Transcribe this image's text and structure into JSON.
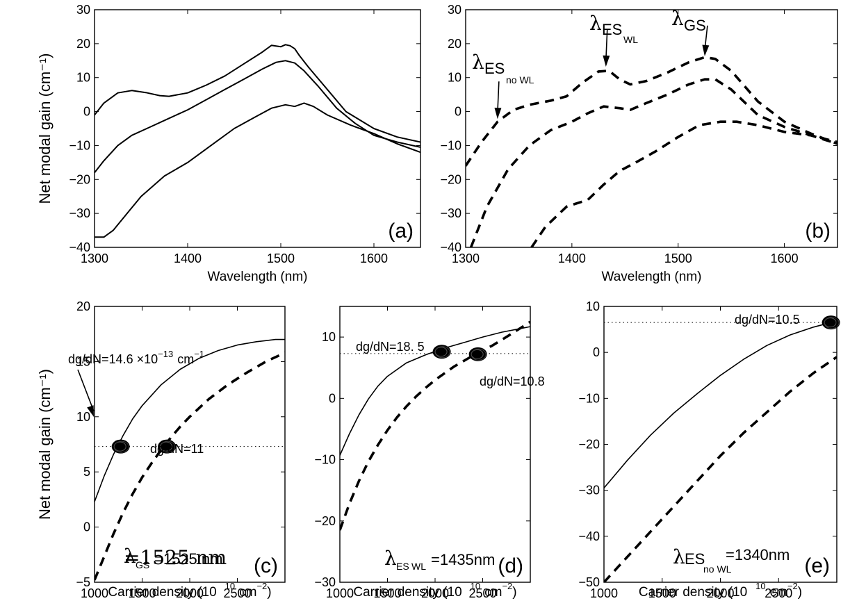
{
  "chart_data": [
    {
      "panel": "(a)",
      "type": "line",
      "xlabel": "Wavelength (nm)",
      "ylabel": "Net modal gain (cm⁻¹)",
      "xlim": [
        1300,
        1650
      ],
      "ylim": [
        -40,
        30
      ],
      "xticks": [
        1300,
        1400,
        1500,
        1600
      ],
      "yticks": [
        -40,
        -30,
        -20,
        -10,
        0,
        10,
        20,
        30
      ],
      "line_style": "solid",
      "series": [
        {
          "x": [
            1300,
            1310,
            1325,
            1340,
            1355,
            1370,
            1380,
            1400,
            1420,
            1440,
            1460,
            1480,
            1490,
            1500,
            1505,
            1510,
            1515,
            1520,
            1530,
            1550,
            1570,
            1600,
            1625,
            1650
          ],
          "y": [
            -1,
            2.5,
            5.5,
            6.2,
            5.6,
            4.7,
            4.5,
            5.5,
            7.8,
            10.5,
            14,
            17.5,
            19.5,
            19.1,
            19.7,
            19.4,
            18.5,
            16.5,
            13,
            6.5,
            0,
            -5,
            -7.5,
            -9
          ]
        },
        {
          "x": [
            1300,
            1310,
            1325,
            1340,
            1360,
            1380,
            1400,
            1420,
            1440,
            1460,
            1480,
            1495,
            1505,
            1515,
            1525,
            1540,
            1560,
            1580,
            1600,
            1625,
            1650
          ],
          "y": [
            -18,
            -14.5,
            -10,
            -7,
            -4.5,
            -2,
            0.5,
            3.5,
            6.5,
            9.5,
            12.5,
            14.5,
            15,
            14.3,
            12,
            7.5,
            1,
            -3.5,
            -7,
            -9,
            -10.5
          ]
        },
        {
          "x": [
            1300,
            1310,
            1320,
            1335,
            1350,
            1375,
            1400,
            1425,
            1450,
            1470,
            1490,
            1505,
            1515,
            1525,
            1535,
            1550,
            1575,
            1600,
            1625,
            1650
          ],
          "y": [
            -37,
            -37,
            -35,
            -30,
            -25,
            -19,
            -15,
            -10,
            -5,
            -2,
            1,
            2,
            1.5,
            2.5,
            1.5,
            -1,
            -4,
            -6.5,
            -9.5,
            -12
          ]
        }
      ],
      "panel_label": "(a)"
    },
    {
      "panel": "(b)",
      "type": "line",
      "xlabel": "Wavelength (nm)",
      "ylabel": "",
      "xlim": [
        1300,
        1650
      ],
      "ylim": [
        -40,
        30
      ],
      "xticks": [
        1300,
        1400,
        1500,
        1600
      ],
      "yticks": [
        -40,
        -30,
        -20,
        -10,
        0,
        10,
        20,
        30
      ],
      "line_style": "dashed",
      "series": [
        {
          "x": [
            1300,
            1315,
            1330,
            1345,
            1360,
            1380,
            1395,
            1410,
            1425,
            1435,
            1445,
            1455,
            1470,
            1490,
            1510,
            1525,
            1535,
            1550,
            1575,
            1600,
            1625,
            1650
          ],
          "y": [
            -16,
            -9,
            -3,
            0.5,
            2,
            3.2,
            4.5,
            8.5,
            11.8,
            12,
            9.5,
            8,
            9,
            11.5,
            14.5,
            16,
            15.5,
            12,
            3,
            -3,
            -6.5,
            -9.5
          ]
        },
        {
          "x": [
            1305,
            1320,
            1340,
            1360,
            1380,
            1400,
            1415,
            1430,
            1445,
            1455,
            1470,
            1490,
            1510,
            1525,
            1535,
            1550,
            1575,
            1600,
            1625,
            1650
          ],
          "y": [
            -40,
            -28,
            -17,
            -10,
            -5.5,
            -3,
            -0.5,
            1.5,
            1,
            0.5,
            2.5,
            5,
            8,
            9.5,
            9.5,
            6.5,
            -1,
            -4.5,
            -7,
            -9
          ]
        },
        {
          "x": [
            1362,
            1375,
            1395,
            1415,
            1430,
            1445,
            1460,
            1480,
            1500,
            1520,
            1540,
            1555,
            1575,
            1600,
            1625,
            1650
          ],
          "y": [
            -40,
            -34,
            -28,
            -26,
            -21.5,
            -17.5,
            -15,
            -11.5,
            -7.5,
            -4,
            -3,
            -3,
            -4,
            -6,
            -7,
            -9.5
          ]
        }
      ],
      "panel_label": "(b)",
      "annotations": {
        "es_no_wl": {
          "lambda": "λ",
          "main": "ES",
          "sub": "no WL",
          "x": 1330,
          "y": -3
        },
        "es_wl": {
          "lambda": "λ",
          "main": "ES",
          "sub": "WL",
          "x": 1432,
          "y": 12
        },
        "gs": {
          "lambda": "λ",
          "main": "GS",
          "x": 1525,
          "y": 15.5
        }
      }
    },
    {
      "panel": "(c)",
      "type": "line",
      "xlabel_main": "Carrier density (10",
      "xlabel_exp": "10",
      "xlabel_unit": "cm",
      "xlabel_unit_exp": "−2",
      "xlabel_close": ")",
      "ylabel": "Net modal gain (cm⁻¹)",
      "xlim": [
        1000,
        3000
      ],
      "ylim": [
        -5,
        20
      ],
      "xticks": [
        1000,
        1500,
        2000,
        2500
      ],
      "yticks": [
        -5,
        0,
        5,
        10,
        15,
        20
      ],
      "series": [
        {
          "style": "solid",
          "x": [
            1000,
            1100,
            1200,
            1300,
            1400,
            1500,
            1700,
            1900,
            2100,
            2300,
            2500,
            2700,
            2900,
            3000
          ],
          "y": [
            2.3,
            4.6,
            6.6,
            8.3,
            9.8,
            11,
            12.9,
            14.3,
            15.3,
            16,
            16.5,
            16.8,
            17,
            17
          ]
        },
        {
          "style": "dashed",
          "x": [
            1000,
            1100,
            1200,
            1300,
            1400,
            1500,
            1600,
            1700,
            1800,
            1900,
            2000,
            2200,
            2400,
            2600,
            2800,
            3000
          ],
          "y": [
            -4.8,
            -2.7,
            -0.6,
            1.3,
            3,
            4.5,
            5.8,
            7,
            8.1,
            9.1,
            10,
            11.6,
            12.9,
            14,
            15,
            15.8
          ]
        }
      ],
      "reference_y": 7.3,
      "markers": [
        {
          "x": 1275,
          "y": 7.3
        },
        {
          "x": 1760,
          "y": 7.3
        }
      ],
      "annotations": {
        "slope_top_main": "dg/dN=14.6 ×10",
        "slope_top_exp": "−13",
        "slope_top_unit": "cm",
        "slope_top_unit_exp": "−1",
        "slope_low": "dg/dN=11",
        "lambda_main": "GS",
        "lambda_value": "=1525 nm"
      },
      "panel_label": "(c)"
    },
    {
      "panel": "(d)",
      "type": "line",
      "xlabel_main": "Carrier density (10",
      "xlabel_exp": "10",
      "xlabel_unit": "cm",
      "xlabel_unit_exp": "−2",
      "xlabel_close": ")",
      "xlim": [
        1000,
        3000
      ],
      "ylim": [
        -30,
        15
      ],
      "xticks": [
        1000,
        1500,
        2000,
        2500
      ],
      "yticks": [
        -30,
        -20,
        -10,
        0,
        10
      ],
      "series": [
        {
          "style": "solid",
          "x": [
            1000,
            1100,
            1200,
            1300,
            1400,
            1500,
            1700,
            1900,
            2100,
            2300,
            2500,
            2700,
            2900,
            3000
          ],
          "y": [
            -9.3,
            -5.8,
            -2.7,
            -0.1,
            2,
            3.6,
            5.8,
            7.1,
            8.2,
            9.1,
            10,
            10.8,
            11.4,
            11.7
          ]
        },
        {
          "style": "dashed",
          "x": [
            1000,
            1100,
            1200,
            1300,
            1400,
            1500,
            1600,
            1700,
            1800,
            1900,
            2000,
            2200,
            2400,
            2600,
            2800,
            3000
          ],
          "y": [
            -21.5,
            -17.2,
            -13.5,
            -10.3,
            -7.6,
            -5.2,
            -3.1,
            -1.3,
            0.3,
            1.7,
            3,
            5.2,
            7,
            8.6,
            10.5,
            12.5
          ]
        }
      ],
      "reference_y": 7.3,
      "markers": [
        {
          "x": 2070,
          "y": 7.6
        },
        {
          "x": 2450,
          "y": 7.2
        }
      ],
      "annotations": {
        "slope_top": "dg/dN=18. 5",
        "slope_low": "dg/dN=10.8",
        "lambda_main": "ES",
        "lambda_sub": "WL",
        "lambda_value": "=1435nm"
      },
      "panel_label": "(d)"
    },
    {
      "panel": "(e)",
      "type": "line",
      "xlabel_main": "Carrier density (10",
      "xlabel_exp": "10",
      "xlabel_unit": "cm",
      "xlabel_unit_exp": "−2",
      "xlabel_close": ")",
      "xlim": [
        1000,
        3000
      ],
      "ylim": [
        -50,
        10
      ],
      "xticks": [
        1000,
        1500,
        2000,
        2500
      ],
      "yticks": [
        -50,
        -40,
        -30,
        -20,
        -10,
        0,
        10
      ],
      "series": [
        {
          "style": "solid",
          "x": [
            1000,
            1200,
            1400,
            1600,
            1800,
            2000,
            2200,
            2400,
            2600,
            2800,
            2950
          ],
          "y": [
            -29.5,
            -23.5,
            -18,
            -13.2,
            -9,
            -5,
            -1.5,
            1.5,
            3.8,
            5.5,
            6.5
          ]
        },
        {
          "style": "dashed",
          "x": [
            1000,
            1200,
            1400,
            1600,
            1800,
            2000,
            2200,
            2400,
            2600,
            2800,
            3000
          ],
          "y": [
            -50,
            -44.5,
            -39,
            -33.5,
            -28,
            -22.5,
            -17.5,
            -13,
            -8.5,
            -4.5,
            -1
          ]
        }
      ],
      "reference_y": 6.5,
      "markers": [
        {
          "x": 2950,
          "y": 6.5
        }
      ],
      "annotations": {
        "slope_top": "dg/dN=10.5",
        "lambda_main": "ES",
        "lambda_sub": "no WL",
        "lambda_value": "=1340nm"
      },
      "panel_label": "(e)"
    }
  ]
}
